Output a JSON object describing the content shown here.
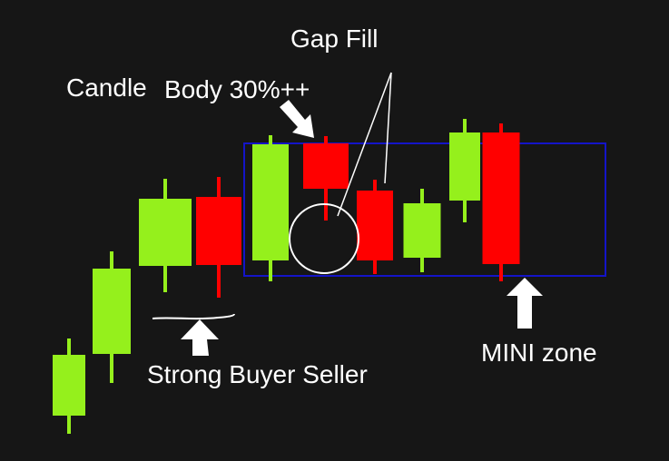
{
  "chart_data": {
    "type": "candlestick",
    "open": [
      50,
      118,
      215,
      291,
      221,
      350,
      298,
      224,
      287,
      362
    ],
    "high": [
      135,
      231,
      311,
      313,
      359,
      358,
      310,
      300,
      377,
      372
    ],
    "low": [
      30,
      86,
      186,
      180,
      198,
      265,
      206,
      208,
      263,
      198
    ],
    "close": [
      117,
      212,
      289,
      216,
      349,
      300,
      221,
      284,
      362,
      217
    ],
    "up_color": "#95f01c",
    "down_color": "#ff0000",
    "ylim": [
      0,
      500
    ],
    "annotations": [
      "Gap Fill",
      "Candle",
      "Body 30%++",
      "Strong Buyer Seller",
      "MINI zone"
    ]
  }
}
